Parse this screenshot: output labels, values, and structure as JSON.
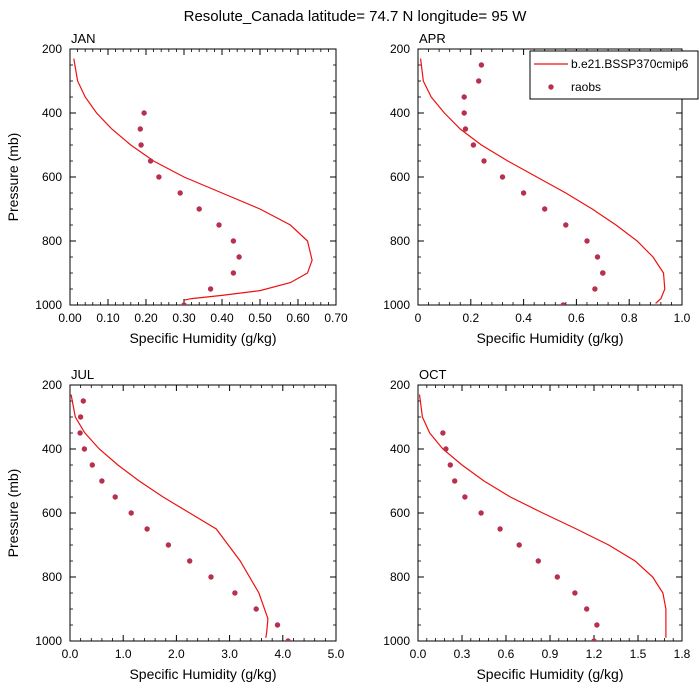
{
  "title": "Resolute_Canada  latitude= 74.7 N longitude= 95 W",
  "legend": {
    "model_label": "b.e21.BSSP370cmip6",
    "obs_label": "raobs"
  },
  "colors": {
    "model_line": "#ee1010",
    "obs_marker": "#b8304f"
  },
  "chart_data": [
    {
      "type": "line",
      "panel": "JAN",
      "title": "JAN",
      "xlabel": "Specific Humidity (g/kg)",
      "ylabel": "Pressure (mb)",
      "xlim": [
        0,
        0.7
      ],
      "ylim": [
        200,
        1000
      ],
      "y_inverted": false,
      "xticks": [
        0,
        0.1,
        0.2,
        0.3,
        0.4,
        0.5,
        0.6,
        0.7
      ],
      "xtick_labels": [
        "0.00",
        "0.10",
        "0.20",
        "0.30",
        "0.40",
        "0.50",
        "0.60",
        "0.70"
      ],
      "yticks": [
        200,
        400,
        600,
        800,
        1000
      ],
      "ytick_labels": [
        "200",
        "400",
        "600",
        "800",
        "1000"
      ],
      "series": [
        {
          "name": "b.e21.BSSP370cmip6",
          "kind": "line",
          "x": [
            0.01,
            0.02,
            0.04,
            0.07,
            0.11,
            0.16,
            0.22,
            0.3,
            0.4,
            0.5,
            0.58,
            0.625,
            0.637,
            0.625,
            0.58,
            0.5,
            0.4,
            0.32,
            0.3
          ],
          "y": [
            230,
            300,
            350,
            400,
            450,
            500,
            550,
            600,
            650,
            700,
            750,
            800,
            860,
            900,
            930,
            955,
            970,
            980,
            985
          ]
        },
        {
          "name": "raobs",
          "kind": "scatter",
          "x": [
            0.195,
            0.185,
            0.187,
            0.212,
            0.234,
            0.29,
            0.34,
            0.392,
            0.43,
            0.445,
            0.43,
            0.37,
            0.3
          ],
          "y": [
            400,
            450,
            500,
            550,
            600,
            650,
            700,
            750,
            800,
            850,
            900,
            950,
            1000
          ]
        }
      ]
    },
    {
      "type": "line",
      "panel": "APR",
      "title": "APR",
      "xlabel": "Specific Humidity (g/kg)",
      "ylabel": "",
      "xlim": [
        0,
        1.0
      ],
      "ylim": [
        200,
        1000
      ],
      "xticks": [
        0,
        0.2,
        0.4,
        0.6,
        0.8,
        1.0
      ],
      "xtick_labels": [
        "0",
        "0.2",
        "0.4",
        "0.6",
        "0.8",
        "1.0"
      ],
      "yticks": [
        200,
        400,
        600,
        800,
        1000
      ],
      "ytick_labels": [
        "200",
        "400",
        "600",
        "800",
        "1000"
      ],
      "series": [
        {
          "name": "b.e21.BSSP370cmip6",
          "kind": "line",
          "x": [
            0.01,
            0.02,
            0.05,
            0.1,
            0.16,
            0.24,
            0.34,
            0.45,
            0.56,
            0.66,
            0.75,
            0.83,
            0.89,
            0.93,
            0.935,
            0.92,
            0.9
          ],
          "y": [
            230,
            300,
            350,
            400,
            450,
            500,
            550,
            600,
            650,
            700,
            750,
            800,
            850,
            900,
            950,
            980,
            995
          ]
        },
        {
          "name": "raobs",
          "kind": "scatter",
          "x": [
            0.24,
            0.23,
            0.175,
            0.175,
            0.18,
            0.21,
            0.25,
            0.32,
            0.4,
            0.48,
            0.56,
            0.64,
            0.68,
            0.7,
            0.7,
            0.67,
            0.55
          ],
          "y": [
            250,
            300,
            350,
            400,
            450,
            500,
            550,
            600,
            650,
            700,
            750,
            800,
            850,
            900,
            900,
            950,
            1000
          ]
        }
      ]
    },
    {
      "type": "line",
      "panel": "JUL",
      "title": "JUL",
      "xlabel": "Specific Humidity (g/kg)",
      "ylabel": "Pressure (mb)",
      "xlim": [
        0,
        5.0
      ],
      "ylim": [
        200,
        1000
      ],
      "xticks": [
        0,
        1,
        2,
        3,
        4,
        5
      ],
      "xtick_labels": [
        "0.0",
        "1.0",
        "2.0",
        "3.0",
        "4.0",
        "5.0"
      ],
      "yticks": [
        200,
        400,
        600,
        800,
        1000
      ],
      "ytick_labels": [
        "200",
        "400",
        "600",
        "800",
        "1000"
      ],
      "series": [
        {
          "name": "b.e21.BSSP370cmip6",
          "kind": "line",
          "x": [
            0.02,
            0.1,
            0.28,
            0.55,
            0.9,
            1.3,
            1.75,
            2.25,
            2.75,
            3.2,
            3.55,
            3.72,
            3.7,
            3.68
          ],
          "y": [
            230,
            300,
            350,
            400,
            450,
            500,
            550,
            600,
            650,
            750,
            850,
            930,
            970,
            990
          ]
        },
        {
          "name": "raobs",
          "kind": "scatter",
          "x": [
            0.25,
            0.2,
            0.19,
            0.27,
            0.42,
            0.6,
            0.85,
            1.15,
            1.45,
            1.85,
            2.25,
            2.65,
            3.1,
            3.5,
            3.9,
            4.1
          ],
          "y": [
            250,
            300,
            350,
            400,
            450,
            500,
            550,
            600,
            650,
            700,
            750,
            800,
            850,
            900,
            950,
            1000
          ]
        }
      ]
    },
    {
      "type": "line",
      "panel": "OCT",
      "title": "OCT",
      "xlabel": "Specific Humidity (g/kg)",
      "ylabel": "",
      "xlim": [
        0,
        1.8
      ],
      "ylim": [
        200,
        1000
      ],
      "xticks": [
        0,
        0.3,
        0.6,
        0.9,
        1.2,
        1.5,
        1.8
      ],
      "xtick_labels": [
        "0.0",
        "0.3",
        "0.6",
        "0.9",
        "1.2",
        "1.5",
        "1.8"
      ],
      "yticks": [
        200,
        400,
        600,
        800,
        1000
      ],
      "ytick_labels": [
        "200",
        "400",
        "600",
        "800",
        "1000"
      ],
      "series": [
        {
          "name": "b.e21.BSSP370cmip6",
          "kind": "line",
          "x": [
            0.01,
            0.03,
            0.08,
            0.17,
            0.3,
            0.45,
            0.63,
            0.85,
            1.08,
            1.3,
            1.48,
            1.6,
            1.67,
            1.69,
            1.69
          ],
          "y": [
            230,
            300,
            350,
            400,
            450,
            500,
            550,
            600,
            650,
            700,
            750,
            800,
            850,
            900,
            990
          ]
        },
        {
          "name": "raobs",
          "kind": "scatter",
          "x": [
            0.17,
            0.19,
            0.22,
            0.25,
            0.32,
            0.43,
            0.56,
            0.69,
            0.82,
            0.95,
            1.07,
            1.15,
            1.22,
            1.2
          ],
          "y": [
            350,
            400,
            450,
            500,
            550,
            600,
            650,
            700,
            750,
            800,
            850,
            900,
            950,
            1000
          ]
        }
      ]
    }
  ]
}
